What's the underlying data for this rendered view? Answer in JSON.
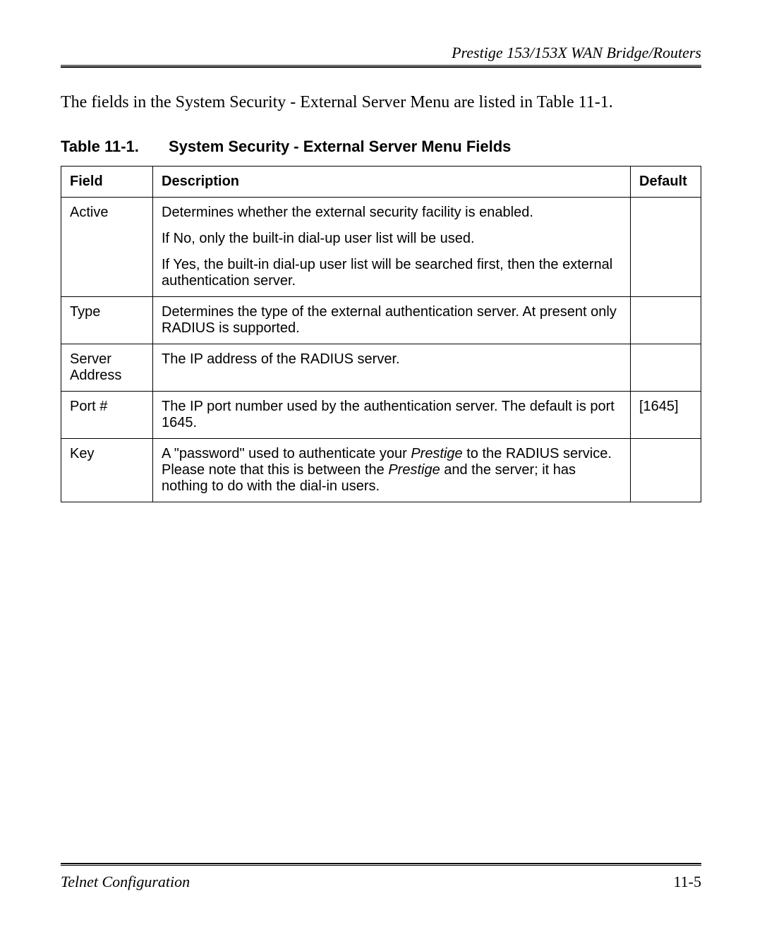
{
  "header": {
    "running_head": "Prestige 153/153X  WAN Bridge/Routers"
  },
  "intro": {
    "text": "The fields in the System Security - External Server Menu are listed in Table 11-1."
  },
  "table": {
    "caption_number": "Table 11-1.",
    "caption_title": "System Security - External Server Menu Fields",
    "columns": {
      "field": "Field",
      "description": "Description",
      "default": "Default"
    },
    "rows": {
      "active": {
        "field": "Active",
        "desc_p1": "Determines whether the external security facility is enabled.",
        "desc_p2": "If No, only the built-in dial-up user list will be used.",
        "desc_p3": "If Yes, the built-in dial-up user list will be searched first, then the external authentication server.",
        "default": ""
      },
      "type": {
        "field": "Type",
        "desc": "Determines the type of the external authentication server. At present only RADIUS is supported.",
        "default": ""
      },
      "server_address": {
        "field": "Server Address",
        "desc": "The IP address of the RADIUS server.",
        "default": ""
      },
      "port": {
        "field": "Port #",
        "desc": "The IP port number used by the authentication server.   The default is port 1645.",
        "default": "[1645]"
      },
      "key": {
        "field": "Key",
        "desc_pre": "A \"password\" used to authenticate your ",
        "desc_em1": "Prestige",
        "desc_mid": " to the RADIUS service. Please note that this is between the ",
        "desc_em2": "Prestige",
        "desc_post": " and the server; it has nothing to do with the dial-in users.",
        "default": ""
      }
    }
  },
  "footer": {
    "left": "Telnet Configuration",
    "right": "11-5"
  }
}
